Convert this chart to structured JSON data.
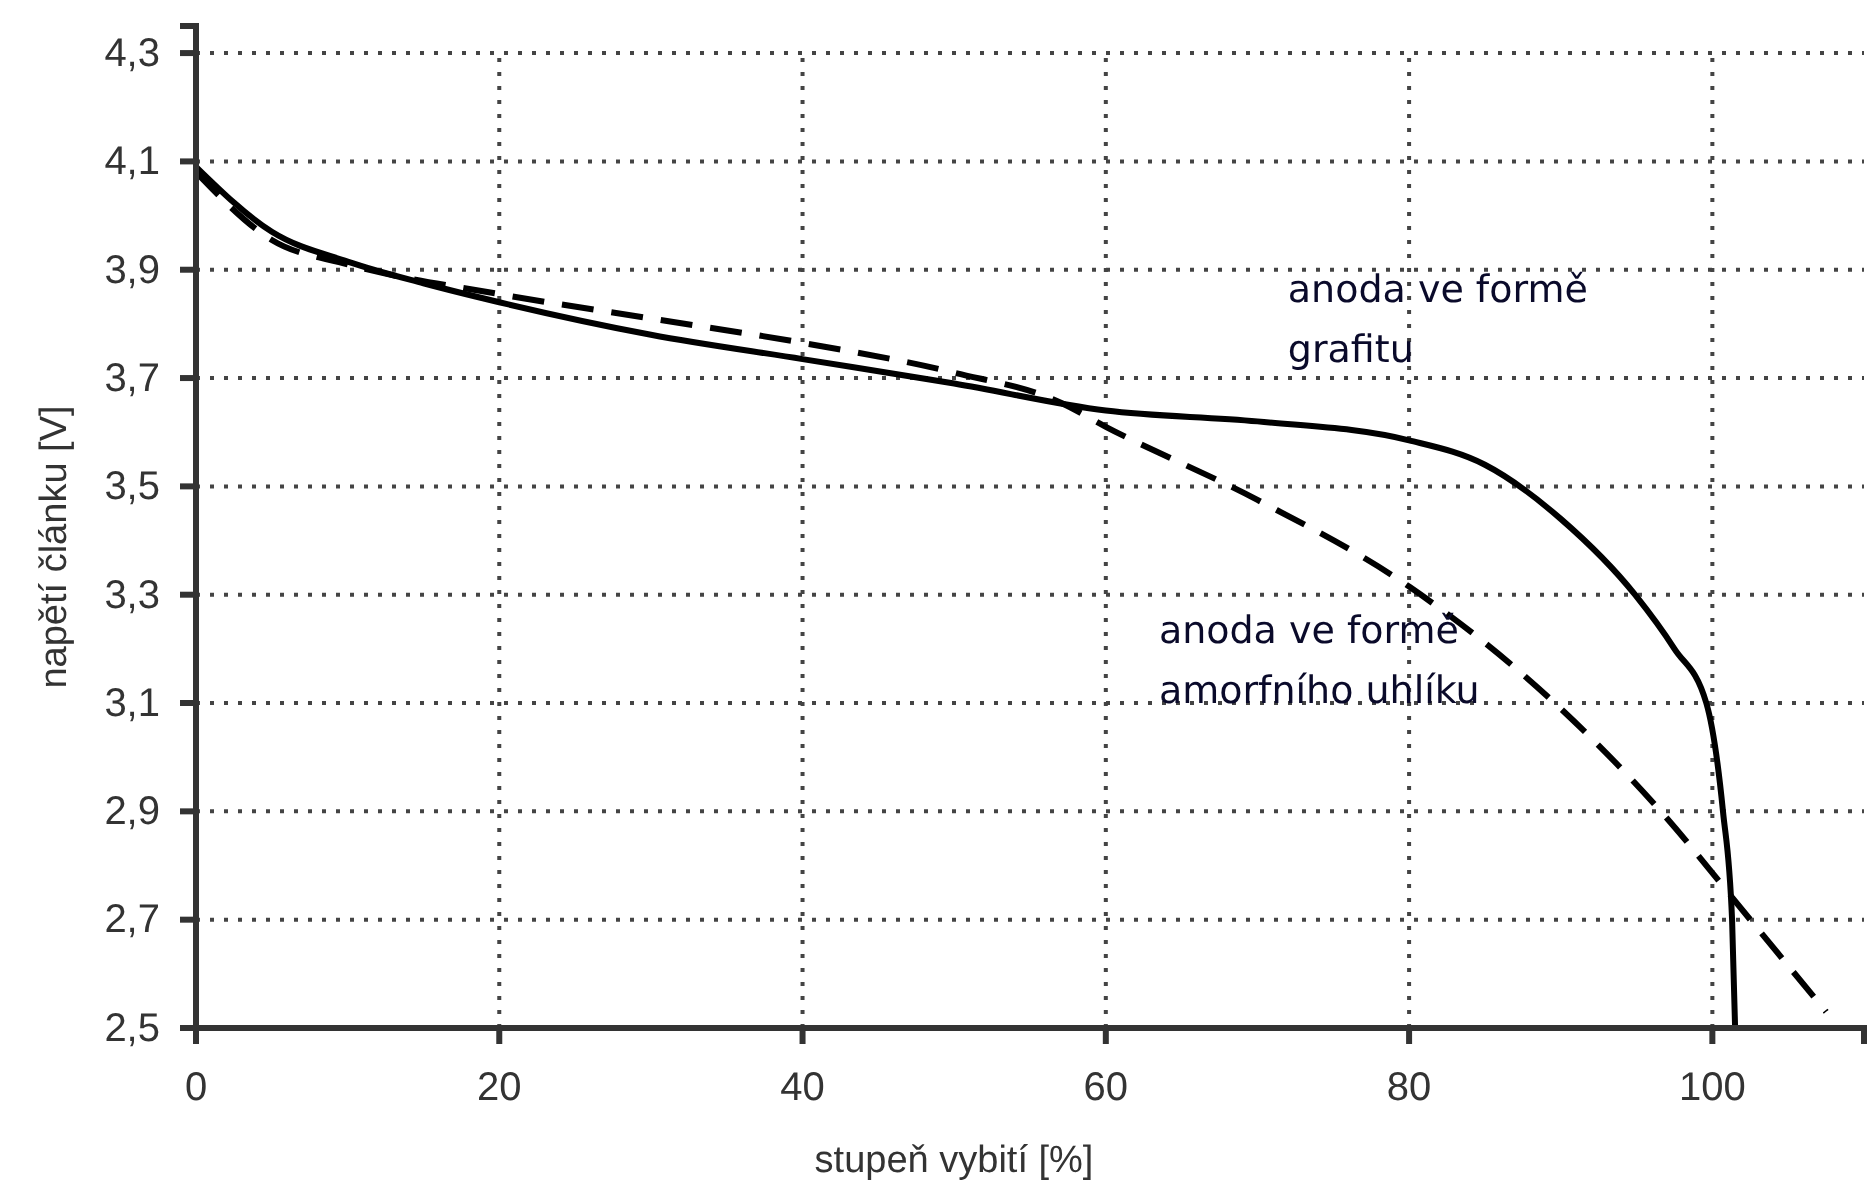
{
  "chart_data": {
    "type": "line",
    "xlabel": "stupeň vybití [%]",
    "ylabel": "napětí článku [V]",
    "xlim": [
      0,
      110
    ],
    "xticks": [
      0,
      20,
      40,
      60,
      80,
      100
    ],
    "ylim": [
      2.5,
      4.35
    ],
    "yticks": [
      {
        "value": 2.5,
        "label": "2,5"
      },
      {
        "value": 2.7,
        "label": "2,7"
      },
      {
        "value": 2.9,
        "label": "2,9"
      },
      {
        "value": 3.1,
        "label": "3,1"
      },
      {
        "value": 3.3,
        "label": "3,3"
      },
      {
        "value": 3.5,
        "label": "3,5"
      },
      {
        "value": 3.7,
        "label": "3,7"
      },
      {
        "value": 3.9,
        "label": "3,9"
      },
      {
        "value": 4.1,
        "label": "4,1"
      },
      {
        "value": 4.3,
        "label": "4,3"
      }
    ],
    "grid": true,
    "marker": "none",
    "series": [
      {
        "name": "anoda ve formě grafitu",
        "color": "#000000",
        "line_style": "solid",
        "x": [
          0,
          5,
          10,
          15,
          20,
          30,
          40,
          50,
          60,
          70,
          80,
          85,
          90,
          94.9,
          97.5,
          99.6,
          100.7,
          101.3,
          101.5
        ],
        "values": [
          4.09,
          3.97,
          3.915,
          3.875,
          3.84,
          3.78,
          3.735,
          3.69,
          3.64,
          3.62,
          3.585,
          3.54,
          3.44,
          3.3,
          3.2,
          3.1,
          2.9,
          2.7,
          2.5
        ]
      },
      {
        "name": "anoda ve formě amorfního uhlíku",
        "color": "#000000",
        "line_style": "dashed",
        "x": [
          0,
          5,
          10,
          20,
          30,
          40,
          50,
          57,
          60,
          70,
          80,
          89.6,
          96.6,
          102.5,
          107.5
        ],
        "values": [
          4.08,
          3.955,
          3.91,
          3.855,
          3.81,
          3.765,
          3.71,
          3.655,
          3.61,
          3.475,
          3.315,
          3.1,
          2.9,
          2.7,
          2.53
        ]
      }
    ]
  }
}
